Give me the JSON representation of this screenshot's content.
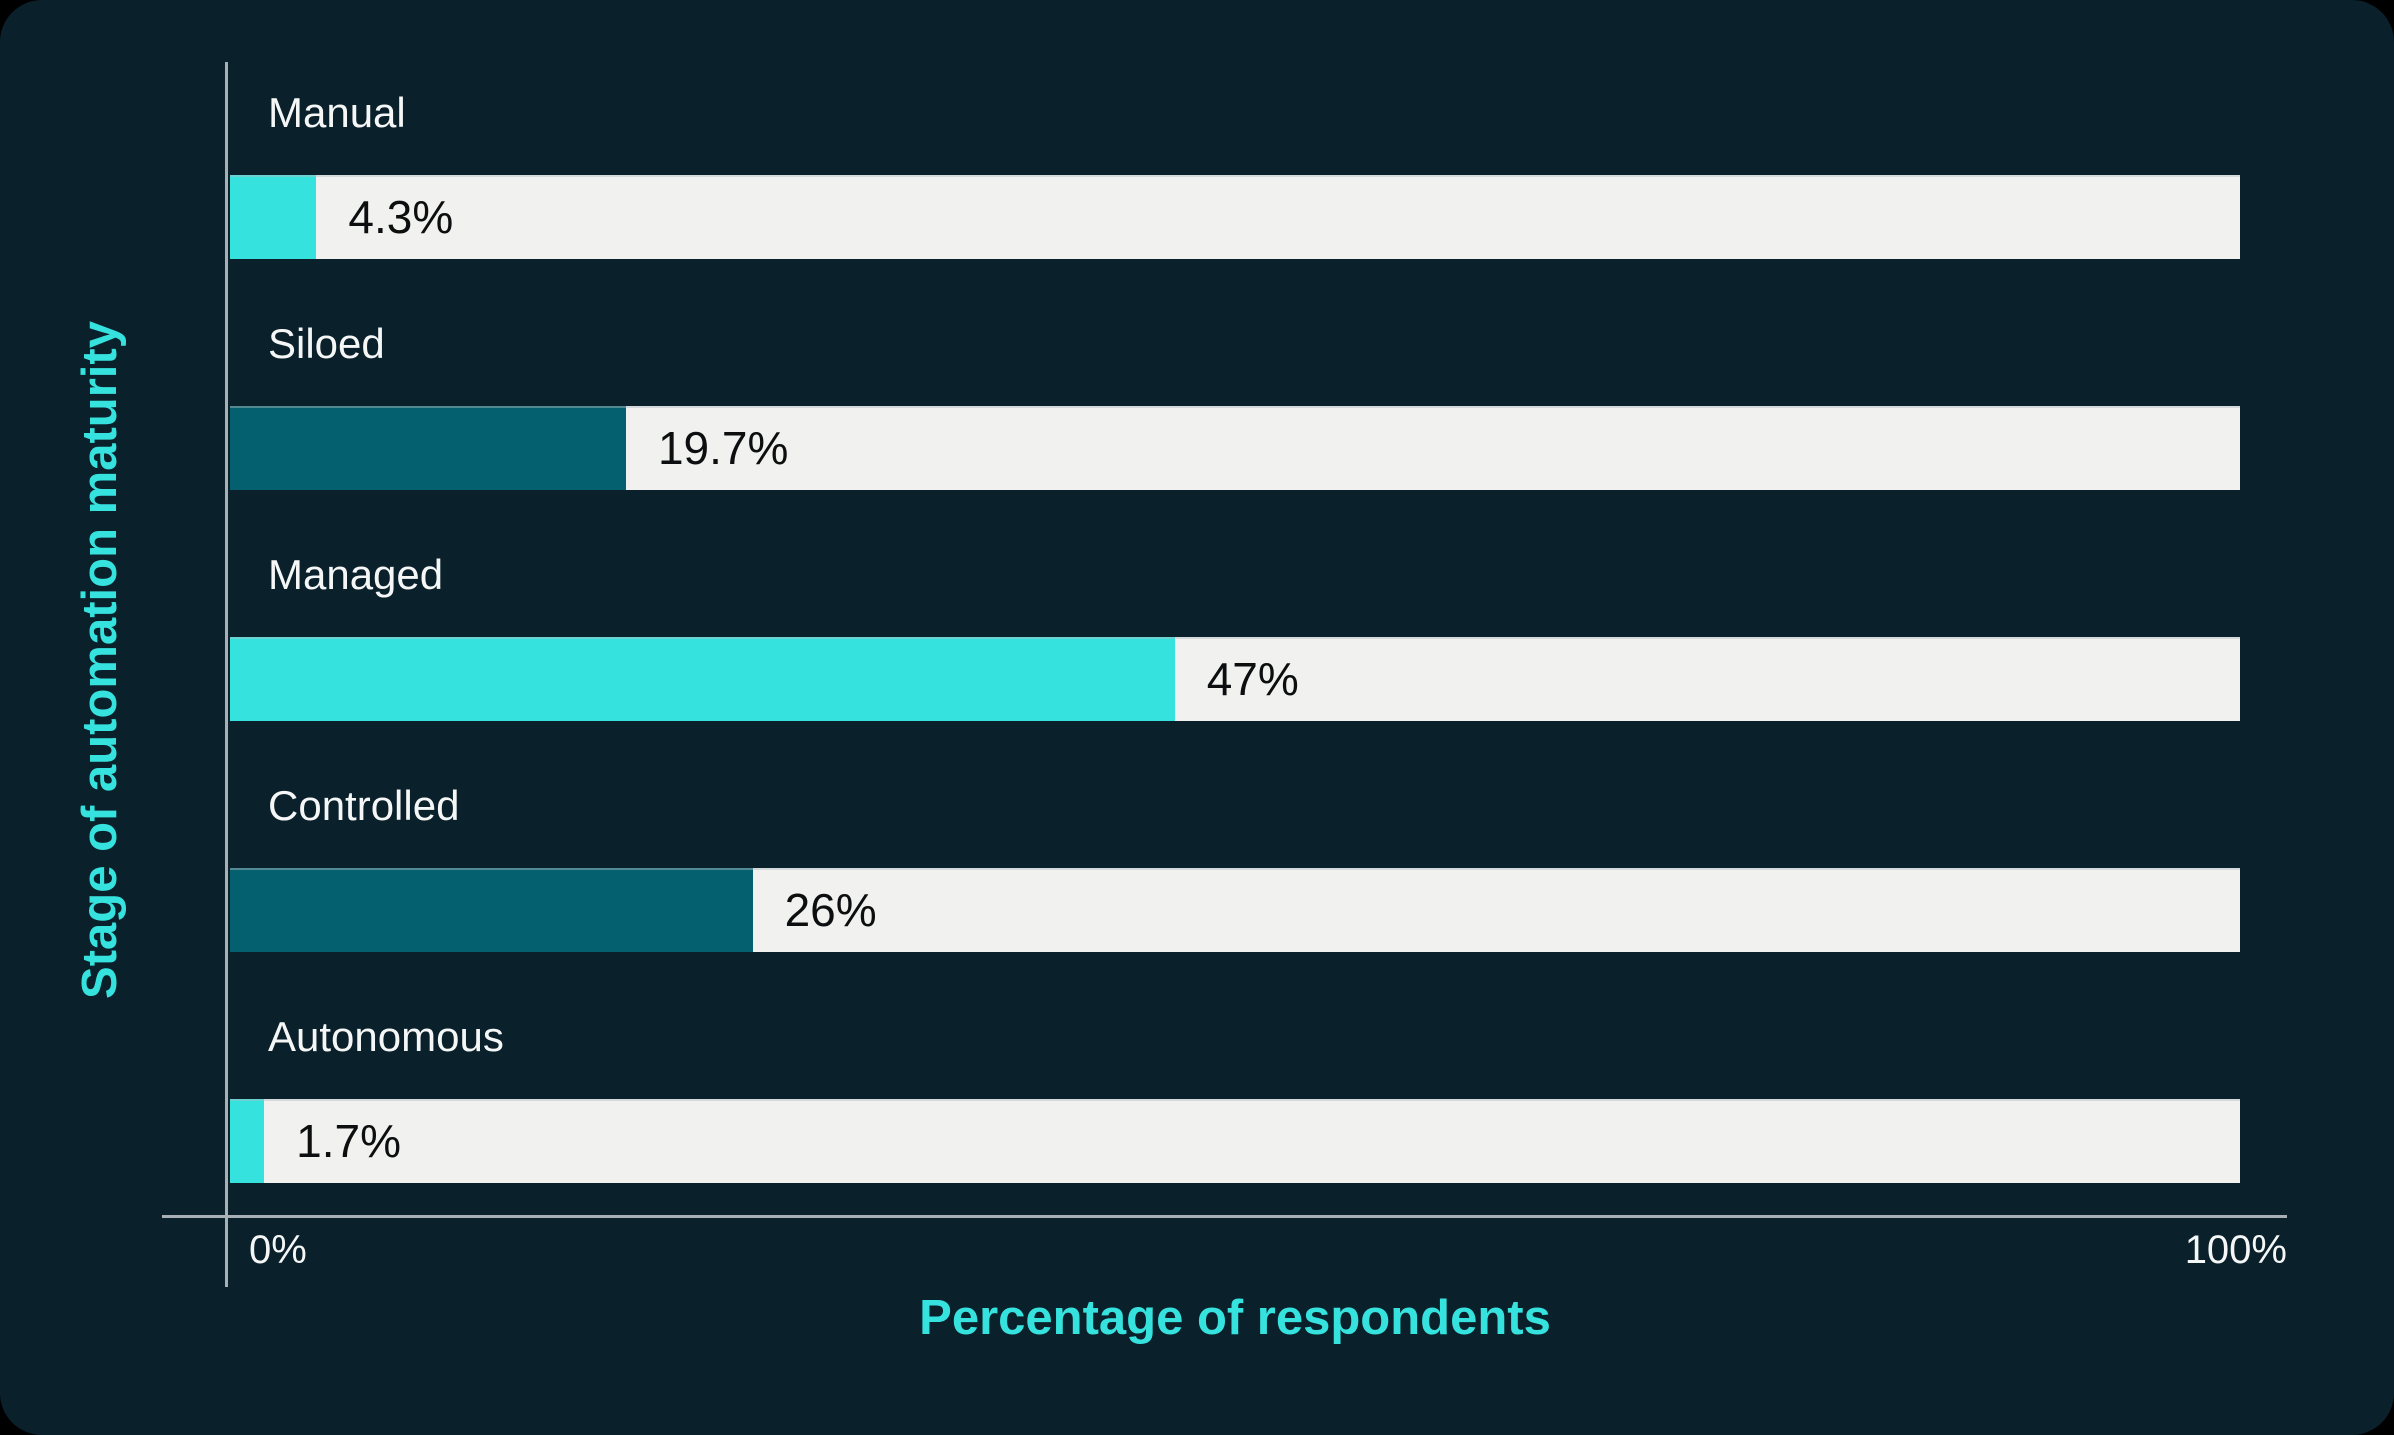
{
  "chart_data": {
    "type": "bar",
    "orientation": "horizontal",
    "title": "",
    "categories": [
      "Manual",
      "Siloed",
      "Managed",
      "Controlled",
      "Autonomous"
    ],
    "values": [
      4.3,
      19.7,
      47,
      26,
      1.7
    ],
    "value_labels": [
      "4.3%",
      "19.7%",
      "47%",
      "26%",
      "1.7%"
    ],
    "bar_colors": [
      "#36E2DE",
      "#045F6E",
      "#36E2DE",
      "#045F6E",
      "#36E2DE"
    ],
    "track_color": "#F1F1F0",
    "xlabel": "Percentage of respondents",
    "ylabel": "Stage of automation maturity",
    "xlim": [
      0,
      100
    ],
    "x_tick_labels": [
      "0%",
      "100%"
    ],
    "grid": false,
    "legend": false
  },
  "axes": {
    "x_title": "Percentage of respondents",
    "y_title": "Stage of automation maturity",
    "tick_min": "0%",
    "tick_max": "100%"
  },
  "colors": {
    "page_background": "#000000",
    "panel_background": "#0A202B",
    "accent_cyan": "#36E2DE",
    "accent_dark_teal": "#045F6E",
    "bar_track": "#F1F1F0",
    "axis_line": "#A8B0B5",
    "category_text": "#F5F7F7",
    "value_text": "#0C0E0F"
  }
}
